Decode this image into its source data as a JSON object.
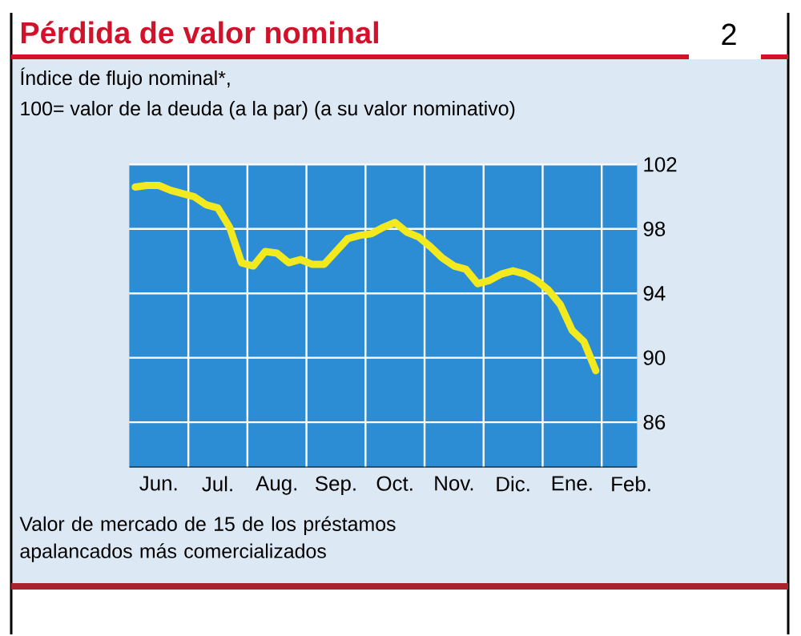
{
  "chart_data": {
    "type": "line",
    "title": "Pérdida de valor nominal",
    "subtitle": "Índice de flujo nominal*,",
    "ylabel": "100= valor de la deuda (a la par) (a su valor nominativo)",
    "annotations": [
      "2",
      "Valor de mercado de 15 de los préstamos apalancados más comercializados"
    ],
    "categories": [
      null,
      null,
      "Jun.",
      null,
      null,
      null,
      null,
      "Jul.",
      null,
      null,
      null,
      null,
      "Aug.",
      null,
      null,
      null,
      null,
      "Sep.",
      null,
      null,
      null,
      null,
      "Oct.",
      null,
      null,
      null,
      null,
      "Nov.",
      null,
      null,
      null,
      null,
      "Dic.",
      null,
      null,
      null,
      null,
      "Ene.",
      null,
      null,
      null,
      null,
      "Feb."
    ],
    "series": [
      {
        "color": "#f2ea1e",
        "values": [
          100.6,
          100.7,
          100.7,
          100.4,
          100.2,
          100.0,
          99.5,
          99.3,
          98.1,
          95.9,
          95.7,
          96.6,
          96.5,
          95.9,
          96.1,
          95.8,
          95.8,
          96.6,
          97.4,
          97.6,
          97.7,
          98.1,
          98.4,
          97.8,
          97.5,
          96.9,
          96.2,
          95.7,
          95.5,
          94.6,
          94.8,
          95.2,
          95.4,
          95.2,
          94.8,
          94.2,
          93.3,
          91.7,
          91.0,
          89.2,
          null,
          null,
          null
        ]
      }
    ],
    "ylim": [
      83.2,
      102
    ],
    "yticks": [
      86,
      90,
      94,
      98,
      102
    ],
    "grid": true,
    "marker": "none",
    "line_style": "solid"
  }
}
